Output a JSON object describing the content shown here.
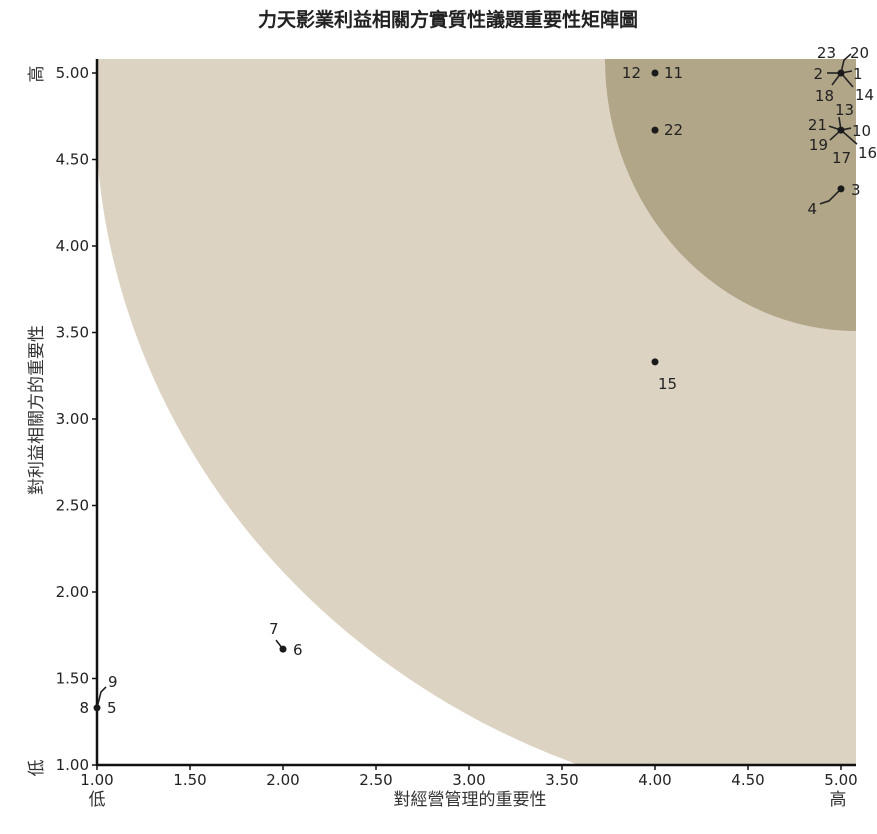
{
  "chart_data": {
    "type": "scatter",
    "title": "力天影業利益相關方實質性議題重要性矩陣圖",
    "xlabel": "對經營管理的重要性",
    "ylabel": "對利益相關方的重要性",
    "x_low": "低",
    "x_high": "高",
    "y_low": "低",
    "y_high": "高",
    "xlim": [
      1.0,
      5.0
    ],
    "ylim": [
      1.0,
      5.0
    ],
    "x_ticks": [
      "1.00",
      "1.50",
      "2.00",
      "2.50",
      "3.00",
      "3.50",
      "4.00",
      "4.50",
      "5.00"
    ],
    "y_ticks": [
      "1.00",
      "1.50",
      "2.00",
      "2.50",
      "3.00",
      "3.50",
      "4.00",
      "4.50",
      "5.00"
    ],
    "zones": [
      {
        "name": "middle",
        "color": "#dcd3c2"
      },
      {
        "name": "high",
        "color": "#b2a689"
      }
    ],
    "points": [
      {
        "x": 4.0,
        "y": 5.0,
        "labels": [
          "12",
          "11"
        ]
      },
      {
        "x": 4.0,
        "y": 4.67,
        "labels": [
          "22"
        ]
      },
      {
        "x": 5.0,
        "y": 5.0,
        "labels": [
          "23",
          "20",
          "2",
          "1",
          "18",
          "14"
        ]
      },
      {
        "x": 5.0,
        "y": 4.67,
        "labels": [
          "13",
          "21",
          "10",
          "19",
          "16",
          "17"
        ]
      },
      {
        "x": 5.0,
        "y": 4.33,
        "labels": [
          "4",
          "3"
        ]
      },
      {
        "x": 4.0,
        "y": 3.33,
        "labels": [
          "15"
        ]
      },
      {
        "x": 2.0,
        "y": 1.67,
        "labels": [
          "7",
          "6"
        ]
      },
      {
        "x": 1.0,
        "y": 1.33,
        "labels": [
          "9",
          "8",
          "5"
        ]
      }
    ]
  }
}
